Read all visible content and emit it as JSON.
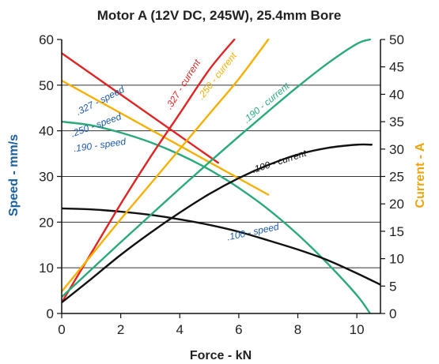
{
  "chart_data": {
    "type": "line",
    "title": "Motor A (12V DC, 245W), 25.4mm Bore",
    "xlabel": "Force - kN",
    "ylabel_left": "Speed - mm/s",
    "ylabel_right": "Current - A",
    "xlim": [
      0,
      10.8
    ],
    "ylim_left": [
      0,
      60
    ],
    "ylim_right": [
      0,
      50
    ],
    "x_ticks": [
      "0",
      "2",
      "4",
      "6",
      "8",
      "10"
    ],
    "y_left_ticks": [
      "0",
      "10",
      "20",
      "30",
      "40",
      "50",
      "60"
    ],
    "y_right_ticks": [
      "0",
      "5",
      "10",
      "15",
      "20",
      "25",
      "30",
      "35",
      "40",
      "45",
      "50"
    ],
    "grid": "horizontal",
    "colors": {
      "left_axis_label": "#1a5fa0",
      "right_axis_label": "#f0a30a",
      "s327": "#e02424",
      "s250": "#f5b000",
      "s190": "#2aaa7a",
      "s100": "#111111",
      "speed_label": "#1d5aa8"
    },
    "series": [
      {
        "label": ".327 - speed",
        "axis": "left",
        "color_key": "s327",
        "x": [
          0,
          5.3
        ],
        "y": [
          57,
          33
        ],
        "label_color_key": "speed_label"
      },
      {
        "label": ".250 - speed",
        "axis": "left",
        "color_key": "s250",
        "x": [
          0,
          7.0
        ],
        "y": [
          51,
          26
        ],
        "label_color_key": "speed_label"
      },
      {
        "label": ".190 - speed",
        "axis": "left",
        "color_key": "s190",
        "x": [
          0,
          1,
          2,
          3,
          4,
          5,
          6,
          7,
          8,
          9,
          10,
          10.45
        ],
        "y": [
          42,
          41.2,
          39.6,
          37.5,
          34.8,
          31.5,
          27.5,
          22.8,
          17.3,
          11,
          4,
          0
        ],
        "label_color_key": "speed_label"
      },
      {
        "label": ".100 - speed",
        "axis": "left",
        "color_key": "s100",
        "x": [
          0,
          1,
          2,
          3,
          4,
          5,
          6,
          7,
          8,
          9,
          10,
          10.8
        ],
        "y": [
          23,
          22.8,
          22.3,
          21.6,
          20.6,
          19.4,
          17.9,
          16,
          14,
          11.7,
          8.8,
          6.3
        ],
        "label_color_key": "speed_label"
      },
      {
        "label": ".327 - current",
        "axis": "right",
        "color_key": "s327",
        "x": [
          0,
          1,
          2,
          3,
          4,
          5,
          5.85
        ],
        "y": [
          2,
          11,
          20,
          28.5,
          36.5,
          44.5,
          50
        ],
        "label_color_key": "s327"
      },
      {
        "label": ".250 - current",
        "axis": "right",
        "color_key": "s250",
        "x": [
          0,
          1,
          2,
          3,
          4,
          5,
          6,
          7.0
        ],
        "y": [
          4,
          10.6,
          17.2,
          23.6,
          30,
          36.4,
          42.8,
          50
        ],
        "label_color_key": "s250"
      },
      {
        "label": ".190 - current",
        "axis": "right",
        "color_key": "s190",
        "x": [
          0,
          1,
          2,
          3,
          4,
          5,
          6,
          7,
          8,
          9,
          10,
          10.45
        ],
        "y": [
          3,
          8,
          13,
          17.9,
          22.8,
          27.6,
          32.3,
          36.9,
          41.4,
          45.6,
          49.2,
          50
        ],
        "label_color_key": "s190"
      },
      {
        "label": ".100 - current",
        "axis": "right",
        "color_key": "s100",
        "x": [
          0,
          1,
          2,
          3,
          4,
          5,
          6,
          7,
          8,
          9,
          10,
          10.5
        ],
        "y": [
          2,
          6.3,
          10.7,
          14.7,
          18.4,
          21.8,
          24.7,
          27.1,
          29,
          30.2,
          30.8,
          30.8
        ],
        "label_color_key": "s100"
      }
    ],
    "annotations": [
      {
        "text": ".327 - speed",
        "series": ".327 - speed",
        "at_x": 1.35,
        "at_y": 46.0,
        "angle": -27,
        "axis": "left",
        "color_key": "speed_label"
      },
      {
        "text": ".250 - speed",
        "series": ".250 - speed",
        "at_x": 1.2,
        "at_y": 40.6,
        "angle": -20,
        "axis": "left",
        "color_key": "speed_label"
      },
      {
        "text": ".190 - speed",
        "series": ".190 - speed",
        "at_x": 1.3,
        "at_y": 36.2,
        "angle": -8,
        "axis": "left",
        "color_key": "speed_label"
      },
      {
        "text": ".100 - speed",
        "series": ".100 - speed",
        "at_x": 6.5,
        "at_y": 17.2,
        "angle": -12,
        "axis": "left",
        "color_key": "speed_label"
      },
      {
        "text": ".327 - current",
        "series": ".327 - current",
        "at_x": 4.2,
        "at_y": 41.5,
        "angle": -58,
        "axis": "right",
        "color_key": "s327"
      },
      {
        "text": ".250 - current",
        "series": ".250 - current",
        "at_x": 5.35,
        "at_y": 43.0,
        "angle": -52,
        "axis": "right",
        "color_key": "s250"
      },
      {
        "text": ".190 - current",
        "series": ".190 - current",
        "at_x": 7.0,
        "at_y": 38.0,
        "angle": -40,
        "axis": "right",
        "color_key": "s190"
      },
      {
        "text": ".100 - current",
        "series": ".100 - current",
        "at_x": 7.4,
        "at_y": 27.2,
        "angle": -18,
        "axis": "right",
        "color_key": "s100"
      }
    ]
  }
}
